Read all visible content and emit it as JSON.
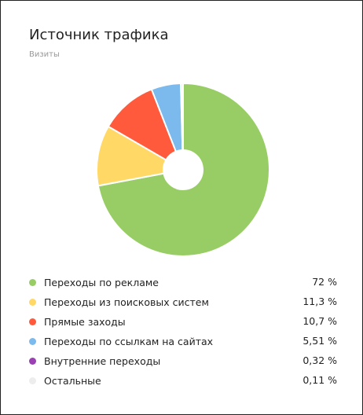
{
  "widget": {
    "title": "Источник трафика",
    "subtitle": "Визиты"
  },
  "chart_data": {
    "type": "pie",
    "donut": true,
    "title": "Источник трафика",
    "subtitle": "Визиты",
    "legend_position": "bottom",
    "slices": [
      {
        "label": "Переходы по рекламе",
        "value": 72,
        "display": "72 %",
        "color": "#98cd65"
      },
      {
        "label": "Переходы из поисковых систем",
        "value": 11.3,
        "display": "11,3 %",
        "color": "#ffd866"
      },
      {
        "label": "Прямые заходы",
        "value": 10.7,
        "display": "10,7 %",
        "color": "#ff5a3c"
      },
      {
        "label": "Переходы по ссылкам на сайтах",
        "value": 5.51,
        "display": "5,51 %",
        "color": "#7cb9ec"
      },
      {
        "label": "Внутренние переходы",
        "value": 0.32,
        "display": "0,32 %",
        "color": "#9b3fb5"
      },
      {
        "label": "Остальные",
        "value": 0.11,
        "display": "0,11 %",
        "color": "#ededed"
      }
    ]
  }
}
